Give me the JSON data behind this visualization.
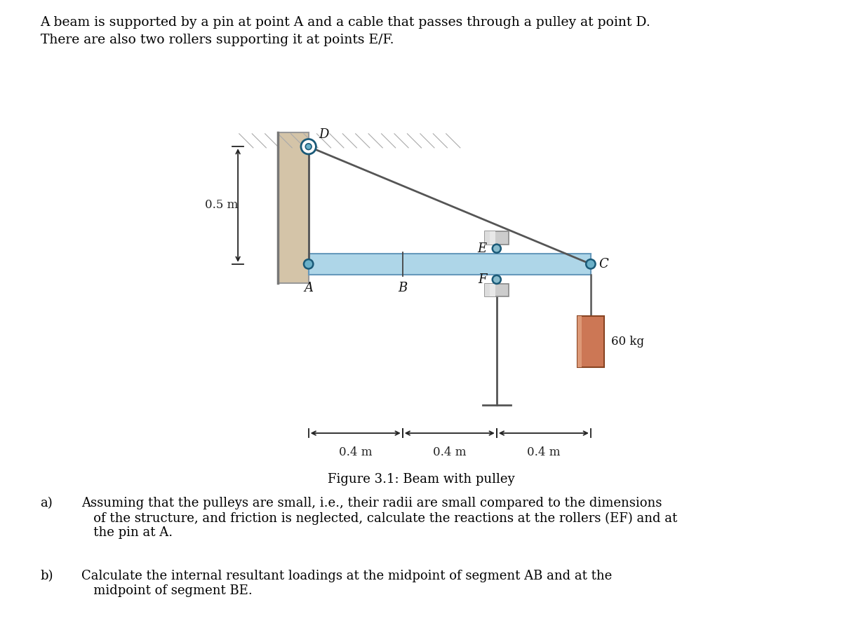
{
  "title_line1": "A beam is supported by a pin at point A and a cable that passes through a pulley at point D.",
  "title_line2": "There are also two rollers supporting it at points E/F.",
  "figure_caption": "Figure 3.1: Beam with pulley",
  "qa_label": "a)",
  "qa_text": "Assuming that the pulleys are small, i.e., their radii are small compared to the dimensions\n   of the structure, and friction is neglected, calculate the reactions at the rollers (EF) and at\n   the pin at A.",
  "qb_label": "b)",
  "qb_text": "Calculate the internal resultant loadings at the midpoint of segment AB and at the\n   midpoint of segment BE.",
  "bg_color": "#ffffff",
  "wall_color": "#d4c4a8",
  "wall_edge_color": "#999999",
  "beam_color": "#aed6e8",
  "beam_edge_color": "#6699bb",
  "cable_color": "#555555",
  "pin_face": "#6ab0c8",
  "pin_edge": "#1a5a78",
  "pulley_face": "white",
  "pulley_inner_face": "#6ab0c8",
  "roller_face": "#88bbcc",
  "roller_edge": "#1a5a78",
  "block_face": "#cccccc",
  "block_edge": "#888888",
  "mass_face": "#cc7755",
  "mass_edge": "#884422",
  "mass_shade": "#dd9977",
  "dim_color": "#222222",
  "label_color": "#111111"
}
